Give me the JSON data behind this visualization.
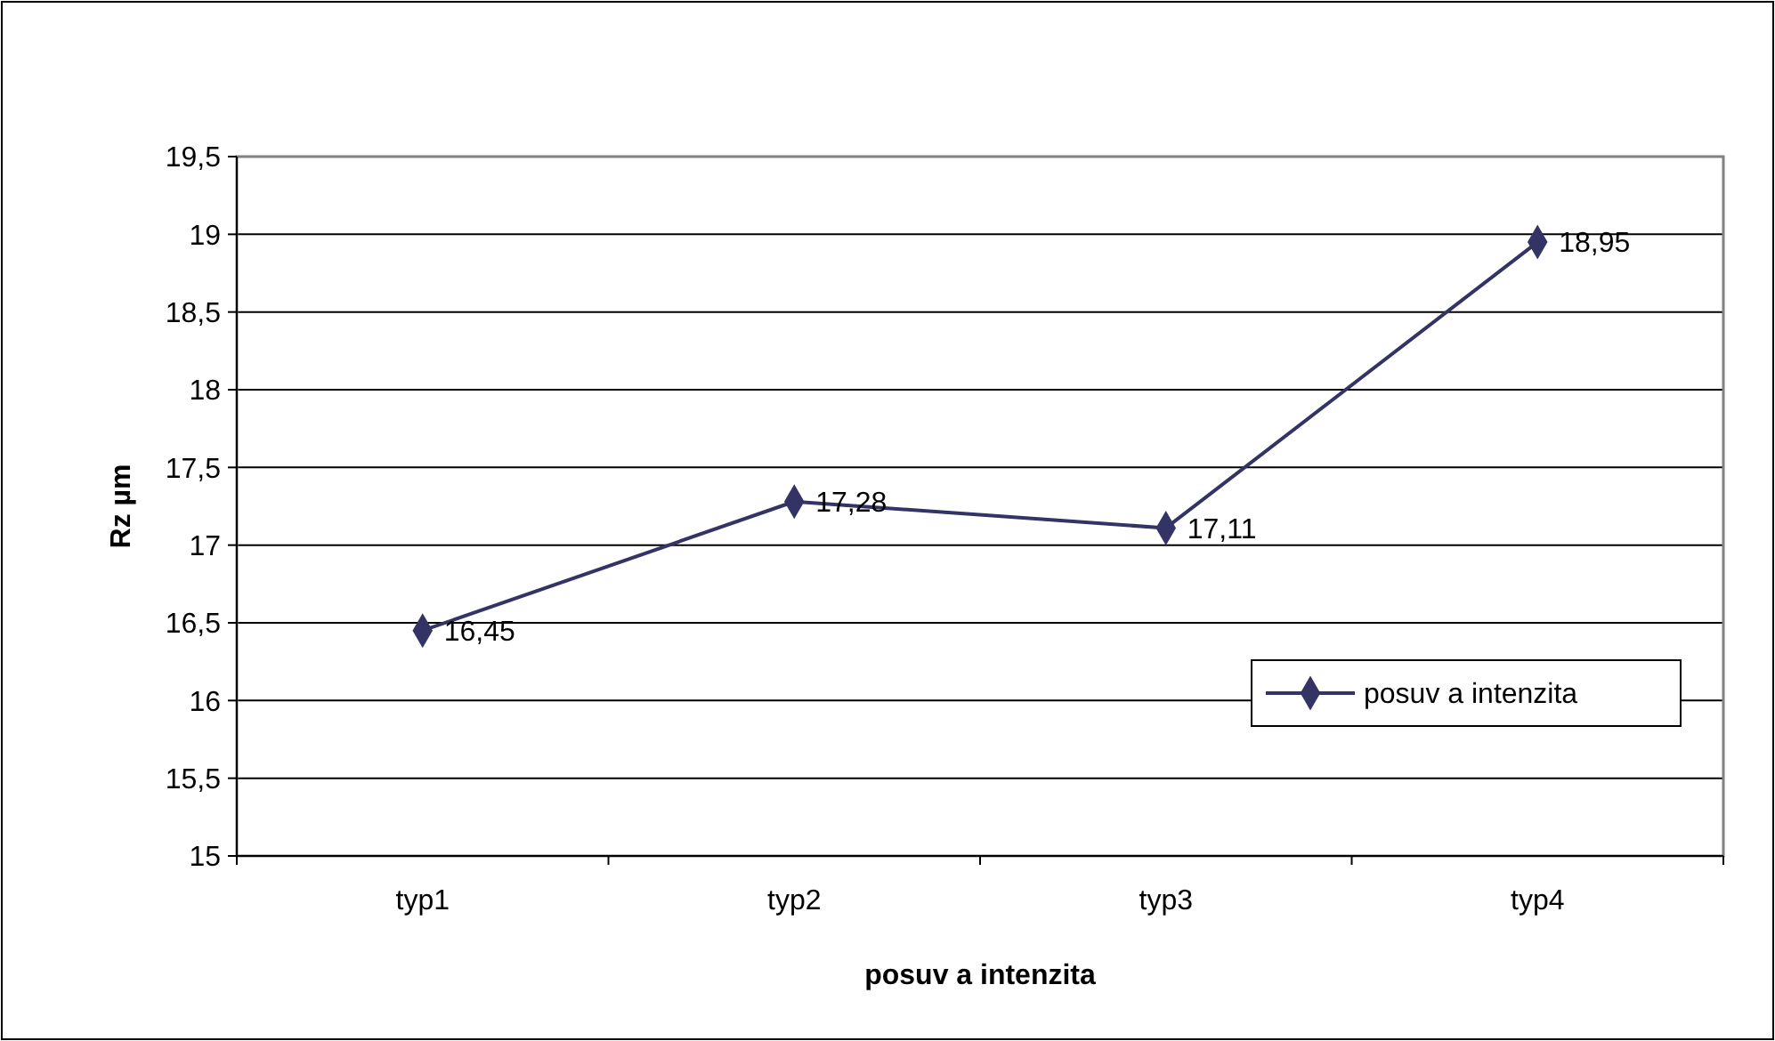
{
  "chart_data": {
    "type": "line",
    "xlabel": "posuv a intenzita",
    "ylabel": "Rz µm",
    "categories": [
      "typ1",
      "typ2",
      "typ3",
      "typ4"
    ],
    "series": [
      {
        "name": "posuv a intenzita",
        "color": "#333366",
        "values": [
          16.45,
          17.28,
          17.11,
          18.95
        ],
        "value_labels": [
          "16,45",
          "17,28",
          "17,11",
          "18,95"
        ]
      }
    ],
    "ylim": [
      15,
      19.5
    ],
    "yticks": [
      15,
      {
        "value": 15.5,
        "label": "15,5"
      },
      16,
      {
        "value": 16.5,
        "label": "16,5"
      },
      17,
      {
        "value": 17.5,
        "label": "17,5"
      },
      18,
      {
        "value": 18.5,
        "label": "18,5"
      },
      19,
      {
        "value": 19.5,
        "label": "19,5"
      }
    ],
    "grid": "y",
    "legend": "bottom right",
    "marker": "diamond",
    "line_style": "solid"
  }
}
